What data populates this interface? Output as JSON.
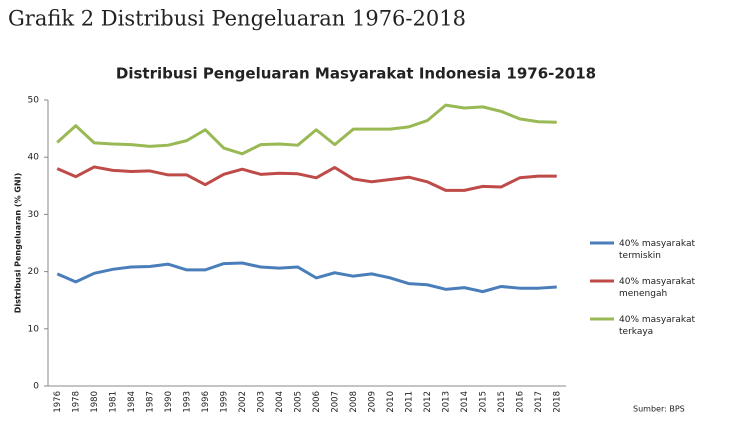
{
  "page_title": "Grafik 2 Distribusi Pengeluaran 1976-2018",
  "chart_data": {
    "type": "line",
    "title": "Distribusi Pengeluaran Masyarakat Indonesia 1976-2018",
    "ylabel": "Distribusi Pengeluaran (% GNI)",
    "source": "Sumber: BPS",
    "categories": [
      "1976",
      "1978",
      "1980",
      "1981",
      "1984",
      "1987",
      "1990",
      "1993",
      "1996",
      "1999",
      "2002",
      "2003",
      "2004",
      "2005",
      "2006",
      "2007",
      "2008",
      "2009",
      "2010",
      "2011",
      "2012",
      "2013",
      "2014",
      "2015",
      "2015",
      "2016",
      "2017",
      "2018"
    ],
    "ylim": [
      0,
      50
    ],
    "yticks": [
      0,
      10,
      20,
      30,
      40,
      50
    ],
    "grid": false,
    "legend": "right",
    "series": [
      {
        "name": "40% masyarakat termiskin",
        "color": "#4a7ebb",
        "values": [
          19.6,
          18.2,
          19.7,
          20.4,
          20.8,
          20.9,
          21.3,
          20.3,
          20.3,
          21.4,
          21.5,
          20.8,
          20.6,
          20.8,
          18.9,
          19.8,
          19.2,
          19.6,
          18.9,
          17.9,
          17.7,
          16.9,
          17.2,
          16.5,
          17.4,
          17.1,
          17.1,
          17.3
        ]
      },
      {
        "name": "40% masyarakat menengah",
        "color": "#be4b48",
        "values": [
          38.0,
          36.6,
          38.3,
          37.7,
          37.5,
          37.6,
          36.9,
          36.9,
          35.2,
          37.0,
          37.9,
          37.0,
          37.2,
          37.1,
          36.4,
          38.2,
          36.2,
          35.7,
          36.1,
          36.5,
          35.7,
          34.2,
          34.2,
          34.9,
          34.8,
          36.4,
          36.7,
          36.7
        ]
      },
      {
        "name": "40% masyarakat terkaya",
        "color": "#98b954",
        "values": [
          42.6,
          45.5,
          42.5,
          42.3,
          42.2,
          41.9,
          42.1,
          42.9,
          44.8,
          41.6,
          40.6,
          42.2,
          42.3,
          42.1,
          44.8,
          42.2,
          44.9,
          44.9,
          44.9,
          45.3,
          46.4,
          49.1,
          48.6,
          48.8,
          48.0,
          46.7,
          46.2,
          46.1
        ]
      }
    ]
  }
}
